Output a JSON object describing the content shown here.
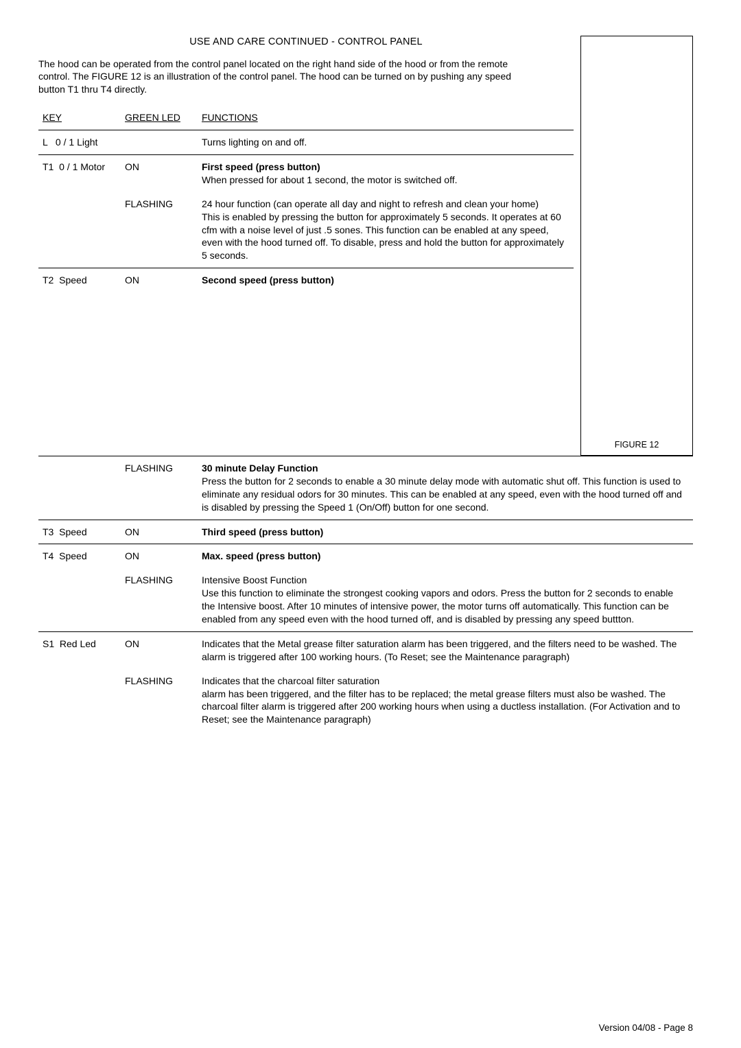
{
  "title": "USE AND CARE CONTINUED - CONTROL PANEL",
  "intro": "The hood can be operated from the control panel located on the right hand side of the hood or from the remote control. The FIGURE 12 is an illustration of the control panel.  The hood can be turned on by pushing any speed button T1 thru T4 directly.",
  "figure_label": "FIGURE 12",
  "headers": {
    "key": "KEY",
    "led": "GREEN LED",
    "fn": "FUNCTIONS"
  },
  "rows": {
    "L": {
      "key": "L   0 / 1 Light",
      "led": "",
      "fn": "Turns lighting on and off."
    },
    "T1a": {
      "key": "T1  0 / 1 Motor",
      "led": "ON",
      "fn_b": "First speed (press button)",
      "fn": "When pressed for about 1 second, the motor is switched off."
    },
    "T1b": {
      "key": "",
      "led": "FLASHING",
      "fn": "24 hour function (can operate all day and night to refresh and clean your home)\nThis is enabled by pressing the button for approximately 5 seconds.  It operates at 60 cfm with a noise level of just .5 sones. This function can be enabled at any speed, even with the hood turned off. To disable, press and hold the button for approximately 5 seconds."
    },
    "T2a": {
      "key": "T2  Speed",
      "led": "ON",
      "fn_b": "Second speed (press button)"
    },
    "T2b": {
      "key": "",
      "led": "FLASHING",
      "fn_b": "30 minute Delay Function",
      "fn": "Press the button for 2 seconds to enable a 30 minute delay mode with automatic shut off. This function is used to eliminate any residual odors for 30 minutes. This can be enabled at any speed, even with the hood turned off and is disabled by pressing the Speed 1 (On/Off) button for one second."
    },
    "T3": {
      "key": "T3  Speed",
      "led": "ON",
      "fn_b": "Third speed (press button)"
    },
    "T4a": {
      "key": "T4  Speed",
      "led": "ON",
      "fn_b": "Max. speed (press button)"
    },
    "T4b": {
      "key": "",
      "led": "FLASHING",
      "fn": "Intensive Boost Function\nUse this function to eliminate the strongest cooking vapors and odors. Press the button for 2 seconds to enable the Intensive boost. After 10 minutes of intensive power, the motor turns off automatically. This function can be enabled from any speed even with the hood turned off, and is disabled by pressing any speed buttton."
    },
    "S1a": {
      "key": "S1  Red Led",
      "led": "ON",
      "fn": "Indicates that the Metal grease filter saturation alarm has been triggered, and the filters need to be washed. The alarm is triggered after 100 working hours. (To Reset; see the Maintenance paragraph)"
    },
    "S1b": {
      "key": "",
      "led": "FLASHING",
      "fn": "Indicates that the charcoal filter saturation\nalarm has been triggered, and the filter has to be replaced; the metal grease filters must also be washed. The charcoal filter alarm is triggered after 200 working hours when using a ductless installation. (For Activation and to Reset; see the Maintenance paragraph)"
    }
  },
  "footer": "Version 04/08 - Page 8"
}
